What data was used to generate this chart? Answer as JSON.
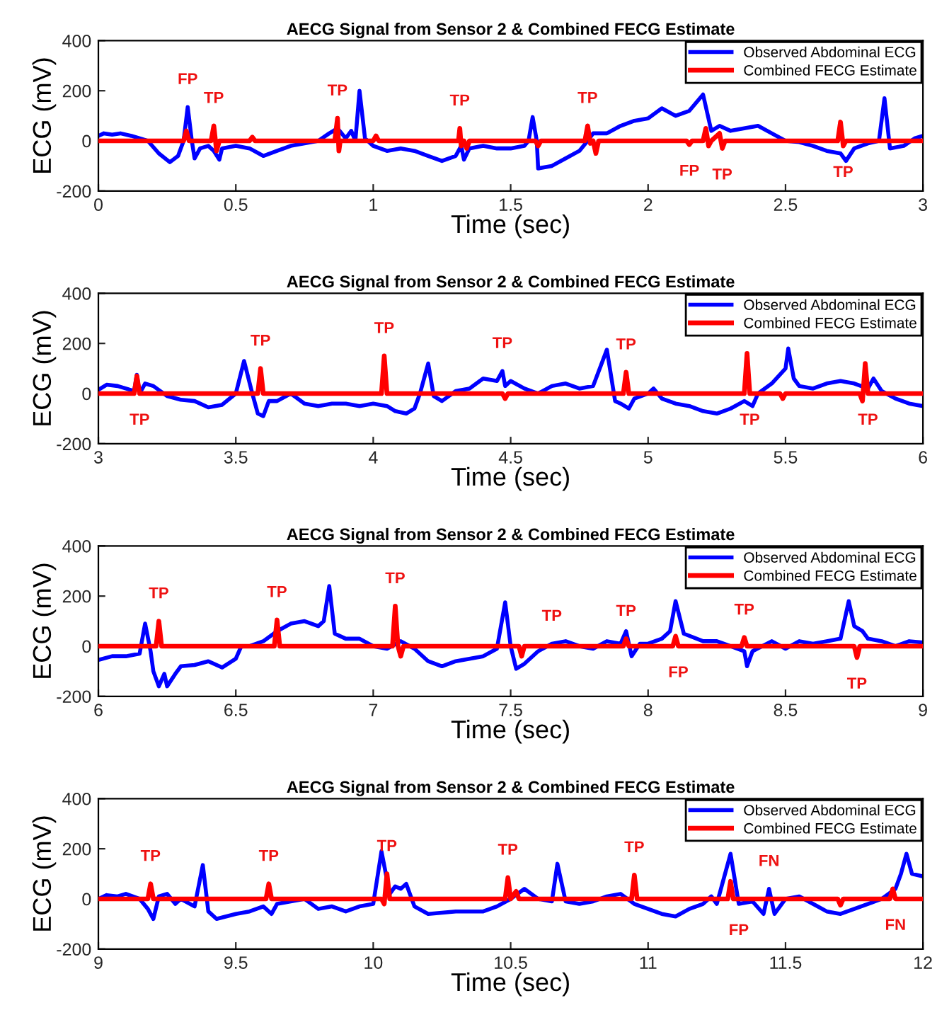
{
  "chart_data": [
    {
      "type": "line",
      "title": "AECG Signal from Sensor 2 & Combined FECG Estimate",
      "xlabel": "Time (sec)",
      "ylabel": "ECG (mV)",
      "xlim": [
        0,
        3
      ],
      "ylim": [
        -200,
        400
      ],
      "xticks": [
        0,
        0.5,
        1,
        1.5,
        2,
        2.5,
        3
      ],
      "yticks": [
        -200,
        0,
        200,
        400
      ],
      "legend": "top right",
      "grid": false,
      "series": [
        {
          "name": "Observed Abdominal ECG",
          "color": "#0000ff",
          "x": [
            0,
            0.02,
            0.05,
            0.08,
            0.12,
            0.18,
            0.22,
            0.26,
            0.29,
            0.31,
            0.325,
            0.34,
            0.35,
            0.37,
            0.4,
            0.42,
            0.44,
            0.45,
            0.5,
            0.55,
            0.6,
            0.65,
            0.7,
            0.75,
            0.8,
            0.84,
            0.87,
            0.9,
            0.92,
            0.935,
            0.95,
            0.97,
            1.0,
            1.05,
            1.1,
            1.15,
            1.2,
            1.25,
            1.3,
            1.32,
            1.33,
            1.35,
            1.4,
            1.45,
            1.5,
            1.55,
            1.565,
            1.58,
            1.595,
            1.6,
            1.65,
            1.7,
            1.75,
            1.78,
            1.8,
            1.85,
            1.9,
            1.95,
            2.0,
            2.05,
            2.1,
            2.15,
            2.2,
            2.23,
            2.26,
            2.3,
            2.35,
            2.4,
            2.45,
            2.5,
            2.55,
            2.6,
            2.65,
            2.7,
            2.72,
            2.75,
            2.8,
            2.84,
            2.86,
            2.88,
            2.93,
            2.97,
            3.0
          ],
          "values": [
            20,
            30,
            25,
            30,
            20,
            0,
            -50,
            -85,
            -60,
            0,
            135,
            0,
            -70,
            -30,
            -20,
            -40,
            -75,
            -30,
            -20,
            -30,
            -60,
            -40,
            -20,
            -10,
            0,
            30,
            50,
            10,
            40,
            0,
            200,
            10,
            -20,
            -40,
            -30,
            -40,
            -60,
            -80,
            -60,
            -20,
            -75,
            -30,
            -20,
            -30,
            -30,
            -20,
            0,
            95,
            0,
            -110,
            -100,
            -70,
            -40,
            0,
            30,
            30,
            60,
            80,
            90,
            130,
            100,
            120,
            185,
            40,
            60,
            40,
            50,
            60,
            30,
            0,
            -5,
            -20,
            -40,
            -50,
            -80,
            -30,
            -10,
            0,
            170,
            -30,
            -20,
            10,
            20
          ]
        },
        {
          "name": "Combined FECG Estimate",
          "color": "#ff0000",
          "x": [
            0,
            0.31,
            0.32,
            0.33,
            0.41,
            0.42,
            0.43,
            0.44,
            0.55,
            0.56,
            0.57,
            0.86,
            0.87,
            0.875,
            0.88,
            1.0,
            1.01,
            1.02,
            1.31,
            1.315,
            1.32,
            1.33,
            1.34,
            1.35,
            1.59,
            1.6,
            1.61,
            1.77,
            1.78,
            1.79,
            1.8,
            1.81,
            1.82,
            2.14,
            2.15,
            2.16,
            2.2,
            2.21,
            2.22,
            2.23,
            2.26,
            2.27,
            2.28,
            2.69,
            2.7,
            2.71,
            2.72,
            3.0
          ],
          "values": [
            0,
            0,
            40,
            0,
            0,
            60,
            -40,
            0,
            0,
            15,
            0,
            0,
            90,
            -40,
            0,
            0,
            20,
            0,
            0,
            50,
            -20,
            0,
            -30,
            0,
            0,
            -20,
            0,
            0,
            60,
            -10,
            0,
            -50,
            0,
            0,
            -15,
            0,
            0,
            50,
            -20,
            0,
            30,
            -30,
            0,
            0,
            75,
            -20,
            0,
            0
          ]
        }
      ],
      "annotations": [
        {
          "text": "FP",
          "x": 0.325,
          "y": 135
        },
        {
          "text": "TP",
          "x": 0.42,
          "y": 60
        },
        {
          "text": "TP",
          "x": 0.87,
          "y": 90
        },
        {
          "text": "TP",
          "x": 1.315,
          "y": 50
        },
        {
          "text": "TP",
          "x": 1.78,
          "y": 60
        },
        {
          "text": "FP",
          "x": 2.15,
          "y": -15
        },
        {
          "text": "TP",
          "x": 2.27,
          "y": -30
        },
        {
          "text": "TP",
          "x": 2.71,
          "y": -20
        }
      ]
    },
    {
      "type": "line",
      "title": "AECG Signal from Sensor 2 & Combined FECG Estimate",
      "xlabel": "Time (sec)",
      "ylabel": "ECG (mV)",
      "xlim": [
        3,
        6
      ],
      "ylim": [
        -200,
        400
      ],
      "xticks": [
        3,
        3.5,
        4,
        4.5,
        5,
        5.5,
        6
      ],
      "yticks": [
        -200,
        0,
        200,
        400
      ],
      "legend": "top right",
      "grid": false,
      "series": [
        {
          "name": "Observed Abdominal ECG",
          "color": "#0000ff",
          "x": [
            3.0,
            3.03,
            3.07,
            3.1,
            3.13,
            3.14,
            3.15,
            3.17,
            3.2,
            3.25,
            3.3,
            3.35,
            3.4,
            3.45,
            3.5,
            3.53,
            3.56,
            3.58,
            3.6,
            3.62,
            3.65,
            3.7,
            3.75,
            3.8,
            3.85,
            3.9,
            3.95,
            4.0,
            4.05,
            4.08,
            4.12,
            4.15,
            4.17,
            4.2,
            4.22,
            4.25,
            4.3,
            4.35,
            4.4,
            4.45,
            4.47,
            4.48,
            4.5,
            4.55,
            4.6,
            4.65,
            4.7,
            4.75,
            4.8,
            4.85,
            4.88,
            4.9,
            4.93,
            4.95,
            5.0,
            5.02,
            5.05,
            5.1,
            5.15,
            5.2,
            5.25,
            5.3,
            5.35,
            5.38,
            5.4,
            5.45,
            5.5,
            5.51,
            5.53,
            5.55,
            5.6,
            5.65,
            5.7,
            5.75,
            5.8,
            5.82,
            5.85,
            5.9,
            5.95,
            6.0
          ],
          "values": [
            15,
            35,
            30,
            20,
            10,
            75,
            0,
            40,
            30,
            -10,
            -25,
            -30,
            -55,
            -45,
            0,
            130,
            0,
            -80,
            -90,
            -30,
            -30,
            0,
            -40,
            -50,
            -40,
            -40,
            -50,
            -40,
            -50,
            -70,
            -80,
            -60,
            0,
            120,
            -10,
            -30,
            10,
            20,
            60,
            50,
            90,
            30,
            50,
            20,
            0,
            30,
            40,
            20,
            30,
            175,
            -30,
            -40,
            -60,
            -20,
            0,
            20,
            -20,
            -40,
            -50,
            -70,
            -80,
            -60,
            -30,
            -50,
            0,
            40,
            100,
            180,
            60,
            30,
            20,
            40,
            50,
            40,
            20,
            60,
            10,
            -20,
            -40,
            -50
          ]
        },
        {
          "name": "Combined FECG Estimate",
          "color": "#ff0000",
          "x": [
            3.0,
            3.13,
            3.14,
            3.15,
            3.58,
            3.59,
            3.6,
            4.03,
            4.04,
            4.05,
            4.47,
            4.48,
            4.49,
            4.91,
            4.92,
            4.93,
            5.35,
            5.36,
            5.37,
            5.48,
            5.49,
            5.5,
            5.77,
            5.78,
            5.79,
            5.8,
            6.0
          ],
          "values": [
            0,
            0,
            70,
            0,
            0,
            100,
            0,
            0,
            150,
            0,
            0,
            -20,
            0,
            0,
            85,
            0,
            0,
            160,
            0,
            0,
            -20,
            0,
            0,
            -30,
            120,
            0,
            0
          ]
        }
      ],
      "annotations": [
        {
          "text": "TP",
          "x": 3.15,
          "y": 0
        },
        {
          "text": "TP",
          "x": 3.59,
          "y": 100
        },
        {
          "text": "TP",
          "x": 4.04,
          "y": 150
        },
        {
          "text": "TP",
          "x": 4.47,
          "y": 90
        },
        {
          "text": "TP",
          "x": 4.92,
          "y": 85
        },
        {
          "text": "TP",
          "x": 5.37,
          "y": 0
        },
        {
          "text": "TP",
          "x": 5.8,
          "y": 0
        }
      ]
    },
    {
      "type": "line",
      "title": "AECG Signal from Sensor 2 & Combined FECG Estimate",
      "xlabel": "Time (sec)",
      "ylabel": "ECG (mV)",
      "xlim": [
        6,
        9
      ],
      "ylim": [
        -200,
        400
      ],
      "xticks": [
        6,
        6.5,
        7,
        7.5,
        8,
        8.5,
        9
      ],
      "yticks": [
        -200,
        0,
        200,
        400
      ],
      "legend": "top right",
      "grid": false,
      "series": [
        {
          "name": "Observed Abdominal ECG",
          "color": "#0000ff",
          "x": [
            6.0,
            6.05,
            6.1,
            6.15,
            6.17,
            6.19,
            6.2,
            6.22,
            6.24,
            6.25,
            6.28,
            6.3,
            6.35,
            6.4,
            6.45,
            6.5,
            6.52,
            6.55,
            6.6,
            6.65,
            6.7,
            6.75,
            6.8,
            6.82,
            6.84,
            6.86,
            6.9,
            6.95,
            7.0,
            7.05,
            7.1,
            7.15,
            7.2,
            7.25,
            7.3,
            7.35,
            7.4,
            7.45,
            7.48,
            7.5,
            7.52,
            7.55,
            7.6,
            7.65,
            7.7,
            7.75,
            7.8,
            7.85,
            7.9,
            7.92,
            7.94,
            7.97,
            8.0,
            8.05,
            8.08,
            8.1,
            8.13,
            8.2,
            8.25,
            8.3,
            8.35,
            8.36,
            8.38,
            8.45,
            8.5,
            8.55,
            8.6,
            8.65,
            8.7,
            8.73,
            8.75,
            8.78,
            8.8,
            8.85,
            8.9,
            8.95,
            9.0
          ],
          "values": [
            -55,
            -40,
            -40,
            -30,
            90,
            -20,
            -100,
            -160,
            -110,
            -160,
            -110,
            -80,
            -75,
            -60,
            -85,
            -50,
            0,
            0,
            20,
            60,
            90,
            100,
            80,
            100,
            240,
            50,
            30,
            30,
            0,
            -10,
            20,
            -10,
            -60,
            -80,
            -60,
            -50,
            -40,
            -10,
            175,
            0,
            -90,
            -70,
            -20,
            10,
            20,
            0,
            -10,
            20,
            10,
            60,
            -40,
            10,
            10,
            30,
            60,
            180,
            50,
            20,
            20,
            0,
            -20,
            -80,
            -20,
            20,
            -10,
            20,
            10,
            20,
            30,
            180,
            80,
            60,
            30,
            20,
            0,
            20,
            15
          ]
        },
        {
          "name": "Combined FECG Estimate",
          "color": "#ff0000",
          "x": [
            6.0,
            6.21,
            6.22,
            6.23,
            6.64,
            6.65,
            6.66,
            7.07,
            7.08,
            7.09,
            7.1,
            7.11,
            7.53,
            7.54,
            7.55,
            7.91,
            7.92,
            7.93,
            8.09,
            8.1,
            8.11,
            8.34,
            8.35,
            8.36,
            8.75,
            8.76,
            8.77,
            9.0
          ],
          "values": [
            0,
            0,
            100,
            0,
            0,
            105,
            0,
            0,
            160,
            0,
            -40,
            0,
            0,
            -40,
            0,
            0,
            30,
            0,
            0,
            40,
            0,
            0,
            35,
            0,
            0,
            -45,
            0,
            0
          ]
        }
      ],
      "annotations": [
        {
          "text": "TP",
          "x": 6.22,
          "y": 100
        },
        {
          "text": "TP",
          "x": 6.65,
          "y": 105
        },
        {
          "text": "TP",
          "x": 7.08,
          "y": 160
        },
        {
          "text": "TP",
          "x": 7.65,
          "y": 10
        },
        {
          "text": "TP",
          "x": 7.92,
          "y": 30
        },
        {
          "text": "FP",
          "x": 8.11,
          "y": 0
        },
        {
          "text": "TP",
          "x": 8.35,
          "y": 35
        },
        {
          "text": "TP",
          "x": 8.76,
          "y": -45
        }
      ]
    },
    {
      "type": "line",
      "title": "AECG Signal from Sensor 2 & Combined FECG Estimate",
      "xlabel": "Time (sec)",
      "ylabel": "ECG (mV)",
      "xlim": [
        9,
        12
      ],
      "ylim": [
        -200,
        400
      ],
      "xticks": [
        9,
        9.5,
        10,
        10.5,
        11,
        11.5,
        12
      ],
      "yticks": [
        -200,
        0,
        200,
        400
      ],
      "legend": "top right",
      "grid": false,
      "series": [
        {
          "name": "Observed Abdominal ECG",
          "color": "#0000ff",
          "x": [
            9.0,
            9.03,
            9.07,
            9.1,
            9.15,
            9.18,
            9.2,
            9.22,
            9.25,
            9.28,
            9.3,
            9.35,
            9.38,
            9.4,
            9.43,
            9.5,
            9.55,
            9.6,
            9.63,
            9.65,
            9.7,
            9.75,
            9.8,
            9.85,
            9.9,
            9.95,
            10.0,
            10.03,
            10.06,
            10.08,
            10.1,
            10.12,
            10.15,
            10.2,
            10.3,
            10.4,
            10.45,
            10.5,
            10.55,
            10.6,
            10.65,
            10.67,
            10.7,
            10.75,
            10.8,
            10.85,
            10.9,
            10.95,
            11.0,
            11.05,
            11.1,
            11.15,
            11.2,
            11.23,
            11.25,
            11.3,
            11.33,
            11.38,
            11.42,
            11.44,
            11.46,
            11.5,
            11.55,
            11.6,
            11.65,
            11.7,
            11.75,
            11.8,
            11.85,
            11.9,
            11.92,
            11.94,
            11.96,
            12.0
          ],
          "values": [
            0,
            15,
            10,
            20,
            0,
            -40,
            -80,
            10,
            20,
            -20,
            0,
            -30,
            135,
            -50,
            -80,
            -60,
            -50,
            -30,
            -60,
            -20,
            -10,
            0,
            -40,
            -30,
            -50,
            -30,
            -20,
            190,
            20,
            50,
            40,
            60,
            -30,
            -60,
            -50,
            -50,
            -30,
            0,
            40,
            0,
            -10,
            140,
            -10,
            -20,
            -10,
            10,
            20,
            -20,
            -40,
            -60,
            -70,
            -40,
            -20,
            10,
            -20,
            180,
            -20,
            -10,
            -60,
            40,
            -60,
            0,
            10,
            -20,
            -50,
            -60,
            -40,
            -20,
            0,
            40,
            100,
            180,
            100,
            90
          ]
        },
        {
          "name": "Combined FECG Estimate",
          "color": "#ff0000",
          "x": [
            9.0,
            9.18,
            9.19,
            9.2,
            9.61,
            9.62,
            9.63,
            10.03,
            10.04,
            10.05,
            10.06,
            10.48,
            10.49,
            10.5,
            10.52,
            10.53,
            10.94,
            10.95,
            10.96,
            11.29,
            11.3,
            11.31,
            11.69,
            11.7,
            11.71,
            11.88,
            11.89,
            11.9,
            12.0
          ],
          "values": [
            0,
            0,
            60,
            0,
            0,
            60,
            0,
            0,
            -20,
            100,
            0,
            0,
            85,
            0,
            30,
            0,
            0,
            95,
            0,
            0,
            70,
            0,
            0,
            -25,
            0,
            0,
            40,
            0,
            0
          ]
        }
      ],
      "annotations": [
        {
          "text": "TP",
          "x": 9.19,
          "y": 60
        },
        {
          "text": "TP",
          "x": 9.62,
          "y": 60
        },
        {
          "text": "TP",
          "x": 10.05,
          "y": 100
        },
        {
          "text": "TP",
          "x": 10.49,
          "y": 85
        },
        {
          "text": "TP",
          "x": 10.95,
          "y": 95
        },
        {
          "text": "FN",
          "x": 11.44,
          "y": 40
        },
        {
          "text": "FP",
          "x": 11.33,
          "y": -20
        },
        {
          "text": "FN",
          "x": 11.9,
          "y": 0
        }
      ]
    }
  ]
}
